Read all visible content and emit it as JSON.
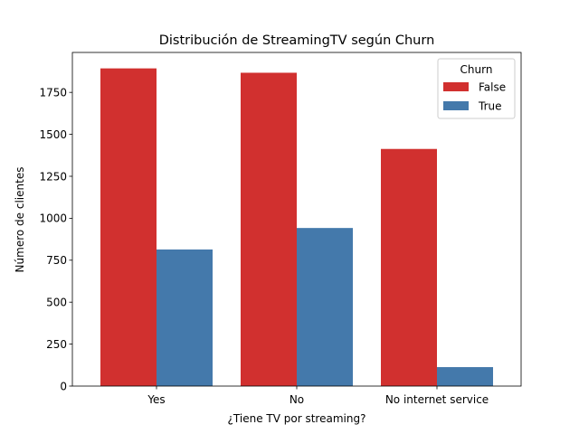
{
  "chart_data": {
    "type": "bar",
    "title": "Distribución de StreamingTV según Churn",
    "xlabel": "¿Tiene TV por streaming?",
    "ylabel": "Número de clientes",
    "categories": [
      "Yes",
      "No",
      "No internet service"
    ],
    "series": [
      {
        "name": "False",
        "color": "#d1302f",
        "values": [
          1893,
          1867,
          1413
        ]
      },
      {
        "name": "True",
        "color": "#4479ab",
        "values": [
          814,
          942,
          113
        ]
      }
    ],
    "ylim": [
      0,
      1988
    ],
    "yticks": [
      0,
      250,
      500,
      750,
      1000,
      1250,
      1500,
      1750
    ],
    "legend": {
      "title": "Churn",
      "position": "top-right"
    },
    "grid": false
  }
}
